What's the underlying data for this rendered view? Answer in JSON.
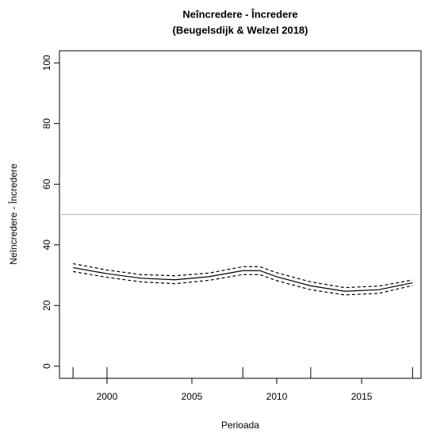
{
  "chart_data": {
    "type": "line",
    "title": "Neîncredere - Încredere",
    "subtitle": "(Beugelsdijk & Welzel 2018)",
    "xlabel": "Perioada",
    "ylabel": "Neîncredere - Încredere",
    "x": [
      1998,
      2000,
      2002,
      2004,
      2006,
      2008,
      2009,
      2010,
      2012,
      2014,
      2016,
      2018
    ],
    "series": [
      {
        "color": "#000000",
        "dash": false,
        "values": [
          32.5,
          30.5,
          29,
          28.5,
          29.5,
          31.5,
          31.5,
          29.5,
          26.5,
          24.7,
          25.2,
          27.5
        ]
      },
      {
        "color": "#000000",
        "dash": true,
        "values": [
          33.8,
          31.7,
          30.2,
          29.8,
          30.7,
          32.8,
          32.8,
          30.8,
          27.8,
          25.9,
          26.4,
          28.4
        ]
      },
      {
        "color": "#000000",
        "dash": true,
        "values": [
          31.2,
          29.3,
          27.8,
          27.2,
          28.3,
          30.2,
          30.2,
          28.2,
          25.2,
          23.5,
          24.0,
          26.6
        ]
      }
    ],
    "hline": 50,
    "hline_color": "#bbbbbb",
    "rug": [
      1998,
      2000,
      2008,
      2012,
      2018
    ],
    "xlim": [
      1997.2,
      2018.5
    ],
    "xticks": [
      2000,
      2005,
      2010,
      2015
    ],
    "ylim": [
      -4,
      104
    ],
    "yticks": [
      0,
      20,
      40,
      60,
      80,
      100
    ]
  }
}
